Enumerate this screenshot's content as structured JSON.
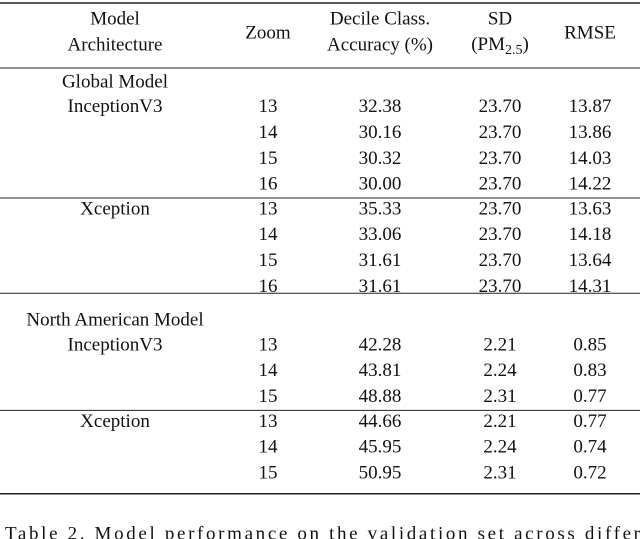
{
  "table": {
    "header": [
      [
        "Model",
        "Architecture"
      ],
      [
        "Zoom"
      ],
      [
        "Decile Class.",
        "Accuracy (%)"
      ],
      [
        "SD",
        {
          "text": "(PM",
          "sub": "2.5",
          "tail": ")"
        }
      ],
      [
        "RMSE"
      ]
    ],
    "groups": [
      {
        "title": "Global Model",
        "blocks": [
          {
            "model": "InceptionV3",
            "rows": [
              [
                "13",
                "32.38",
                "23.70",
                "13.87"
              ],
              [
                "14",
                "30.16",
                "23.70",
                "13.86"
              ],
              [
                "15",
                "30.32",
                "23.70",
                "14.03"
              ],
              [
                "16",
                "30.00",
                "23.70",
                "14.22"
              ]
            ]
          },
          {
            "model": "Xception",
            "rows": [
              [
                "13",
                "35.33",
                "23.70",
                "13.63"
              ],
              [
                "14",
                "33.06",
                "23.70",
                "14.18"
              ],
              [
                "15",
                "31.61",
                "23.70",
                "13.64"
              ],
              [
                "16",
                "31.61",
                "23.70",
                "14.31"
              ]
            ]
          }
        ]
      },
      {
        "title": "North American Model",
        "blocks": [
          {
            "model": "InceptionV3",
            "rows": [
              [
                "13",
                "42.28",
                "2.21",
                "0.85"
              ],
              [
                "14",
                "43.81",
                "2.24",
                "0.83"
              ],
              [
                "15",
                "48.88",
                "2.31",
                "0.77"
              ]
            ]
          },
          {
            "model": "Xception",
            "rows": [
              [
                "13",
                "44.66",
                "2.21",
                "0.77"
              ],
              [
                "14",
                "45.95",
                "2.24",
                "0.74"
              ],
              [
                "15",
                "50.95",
                "2.31",
                "0.72"
              ]
            ]
          }
        ]
      }
    ]
  },
  "caption": "Table 2. Model performance on the validation set across differ"
}
